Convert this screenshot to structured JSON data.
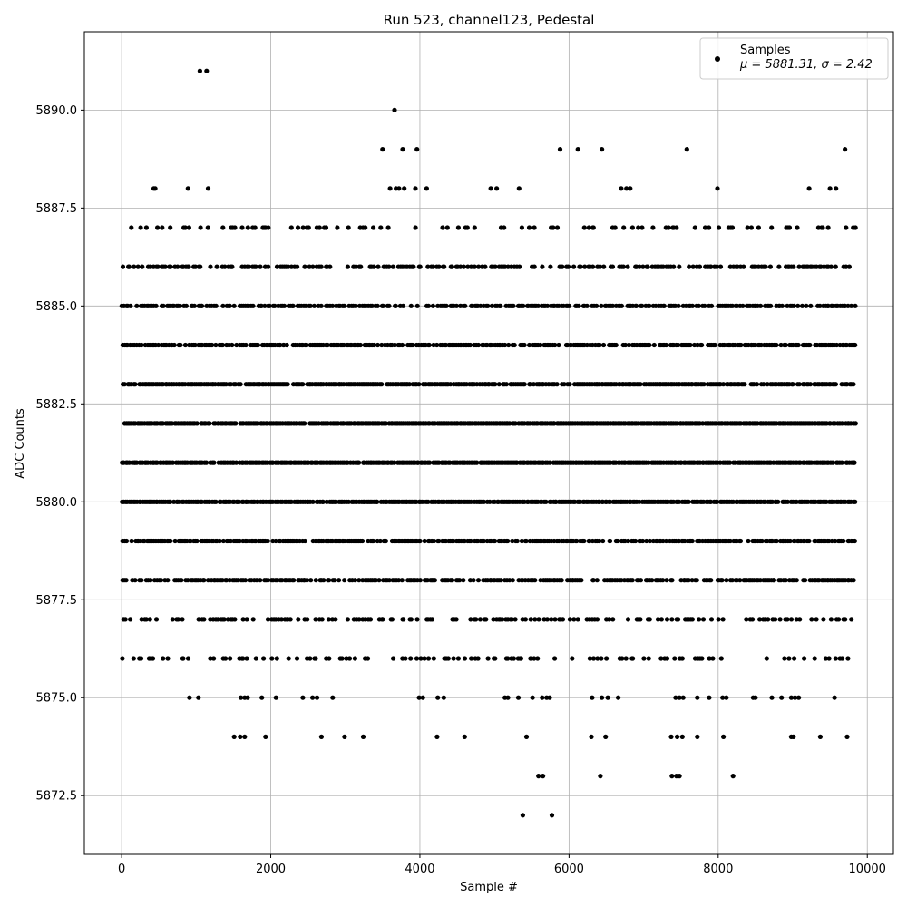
{
  "chart_data": {
    "type": "scatter",
    "title": "Run 523, channel123, Pedestal",
    "xlabel": "Sample #",
    "ylabel": "ADC Counts",
    "xlim": [
      -500,
      10350
    ],
    "ylim": [
      5871.0,
      5892.0
    ],
    "xticks": [
      0,
      2000,
      4000,
      6000,
      8000,
      10000
    ],
    "xtick_labels": [
      "0",
      "2000",
      "4000",
      "6000",
      "8000",
      "10000"
    ],
    "yticks": [
      5872.5,
      5875.0,
      5877.5,
      5880.0,
      5882.5,
      5885.0,
      5887.5,
      5890.0
    ],
    "ytick_labels": [
      "5872.5",
      "5875.0",
      "5877.5",
      "5880.0",
      "5882.5",
      "5885.0",
      "5887.5",
      "5890.0"
    ],
    "grid": true,
    "legend": {
      "placement": "top-right",
      "label": "Samples",
      "stats": "μ = 5881.31, σ = 2.42"
    },
    "marker_color": "#000000",
    "series": [
      {
        "name": "Samples",
        "bands": [
          {
            "y": 5886,
            "density": 0.5
          },
          {
            "y": 5885,
            "density": 0.7
          },
          {
            "y": 5884,
            "density": 0.8
          },
          {
            "y": 5883,
            "density": 0.9
          },
          {
            "y": 5882,
            "density": 0.95
          },
          {
            "y": 5881,
            "density": 0.95
          },
          {
            "y": 5880,
            "density": 0.95
          },
          {
            "y": 5879,
            "density": 0.8
          },
          {
            "y": 5878,
            "density": 0.7
          },
          {
            "y": 5887,
            "density": 0.25
          },
          {
            "y": 5877,
            "density": 0.4
          },
          {
            "y": 5876,
            "density": 0.25
          }
        ],
        "points": [
          {
            "x": 1050,
            "y": 5891
          },
          {
            "x": 1140,
            "y": 5891
          },
          {
            "x": 3660,
            "y": 5890
          },
          {
            "x": 3500,
            "y": 5889
          },
          {
            "x": 3770,
            "y": 5889
          },
          {
            "x": 3960,
            "y": 5889
          },
          {
            "x": 5880,
            "y": 5889
          },
          {
            "x": 6120,
            "y": 5889
          },
          {
            "x": 6440,
            "y": 5889
          },
          {
            "x": 7580,
            "y": 5889
          },
          {
            "x": 9700,
            "y": 5889
          },
          {
            "x": 430,
            "y": 5888
          },
          {
            "x": 450,
            "y": 5888
          },
          {
            "x": 890,
            "y": 5888
          },
          {
            "x": 1160,
            "y": 5888
          },
          {
            "x": 3600,
            "y": 5888
          },
          {
            "x": 3680,
            "y": 5888
          },
          {
            "x": 3720,
            "y": 5888
          },
          {
            "x": 3790,
            "y": 5888
          },
          {
            "x": 3940,
            "y": 5888
          },
          {
            "x": 4090,
            "y": 5888
          },
          {
            "x": 4950,
            "y": 5888
          },
          {
            "x": 5030,
            "y": 5888
          },
          {
            "x": 5330,
            "y": 5888
          },
          {
            "x": 6700,
            "y": 5888
          },
          {
            "x": 6770,
            "y": 5888
          },
          {
            "x": 6820,
            "y": 5888
          },
          {
            "x": 7990,
            "y": 5888
          },
          {
            "x": 9220,
            "y": 5888
          },
          {
            "x": 9500,
            "y": 5888
          },
          {
            "x": 9580,
            "y": 5888
          },
          {
            "x": 910,
            "y": 5875
          },
          {
            "x": 1030,
            "y": 5875
          },
          {
            "x": 1600,
            "y": 5875
          },
          {
            "x": 1650,
            "y": 5875
          },
          {
            "x": 1690,
            "y": 5875
          },
          {
            "x": 1880,
            "y": 5875
          },
          {
            "x": 2070,
            "y": 5875
          },
          {
            "x": 2430,
            "y": 5875
          },
          {
            "x": 2560,
            "y": 5875
          },
          {
            "x": 2620,
            "y": 5875
          },
          {
            "x": 2830,
            "y": 5875
          },
          {
            "x": 3990,
            "y": 5875
          },
          {
            "x": 4040,
            "y": 5875
          },
          {
            "x": 4240,
            "y": 5875
          },
          {
            "x": 4320,
            "y": 5875
          },
          {
            "x": 5140,
            "y": 5875
          },
          {
            "x": 5180,
            "y": 5875
          },
          {
            "x": 5320,
            "y": 5875
          },
          {
            "x": 5510,
            "y": 5875
          },
          {
            "x": 5640,
            "y": 5875
          },
          {
            "x": 5700,
            "y": 5875
          },
          {
            "x": 5740,
            "y": 5875
          },
          {
            "x": 6310,
            "y": 5875
          },
          {
            "x": 6440,
            "y": 5875
          },
          {
            "x": 6520,
            "y": 5875
          },
          {
            "x": 6660,
            "y": 5875
          },
          {
            "x": 7430,
            "y": 5875
          },
          {
            "x": 7480,
            "y": 5875
          },
          {
            "x": 7530,
            "y": 5875
          },
          {
            "x": 7720,
            "y": 5875
          },
          {
            "x": 7880,
            "y": 5875
          },
          {
            "x": 8060,
            "y": 5875
          },
          {
            "x": 8110,
            "y": 5875
          },
          {
            "x": 8470,
            "y": 5875
          },
          {
            "x": 8500,
            "y": 5875
          },
          {
            "x": 8720,
            "y": 5875
          },
          {
            "x": 8850,
            "y": 5875
          },
          {
            "x": 8980,
            "y": 5875
          },
          {
            "x": 9030,
            "y": 5875
          },
          {
            "x": 9080,
            "y": 5875
          },
          {
            "x": 9560,
            "y": 5875
          },
          {
            "x": 1510,
            "y": 5874
          },
          {
            "x": 1590,
            "y": 5874
          },
          {
            "x": 1650,
            "y": 5874
          },
          {
            "x": 1930,
            "y": 5874
          },
          {
            "x": 2680,
            "y": 5874
          },
          {
            "x": 2990,
            "y": 5874
          },
          {
            "x": 3240,
            "y": 5874
          },
          {
            "x": 4230,
            "y": 5874
          },
          {
            "x": 4600,
            "y": 5874
          },
          {
            "x": 5430,
            "y": 5874
          },
          {
            "x": 6300,
            "y": 5874
          },
          {
            "x": 6490,
            "y": 5874
          },
          {
            "x": 7370,
            "y": 5874
          },
          {
            "x": 7450,
            "y": 5874
          },
          {
            "x": 7520,
            "y": 5874
          },
          {
            "x": 7720,
            "y": 5874
          },
          {
            "x": 8070,
            "y": 5874
          },
          {
            "x": 8980,
            "y": 5874
          },
          {
            "x": 9010,
            "y": 5874
          },
          {
            "x": 9370,
            "y": 5874
          },
          {
            "x": 9730,
            "y": 5874
          },
          {
            "x": 5590,
            "y": 5873
          },
          {
            "x": 5650,
            "y": 5873
          },
          {
            "x": 6420,
            "y": 5873
          },
          {
            "x": 7380,
            "y": 5873
          },
          {
            "x": 7440,
            "y": 5873
          },
          {
            "x": 7480,
            "y": 5873
          },
          {
            "x": 8200,
            "y": 5873
          },
          {
            "x": 5380,
            "y": 5872
          },
          {
            "x": 5770,
            "y": 5872
          }
        ]
      }
    ]
  }
}
